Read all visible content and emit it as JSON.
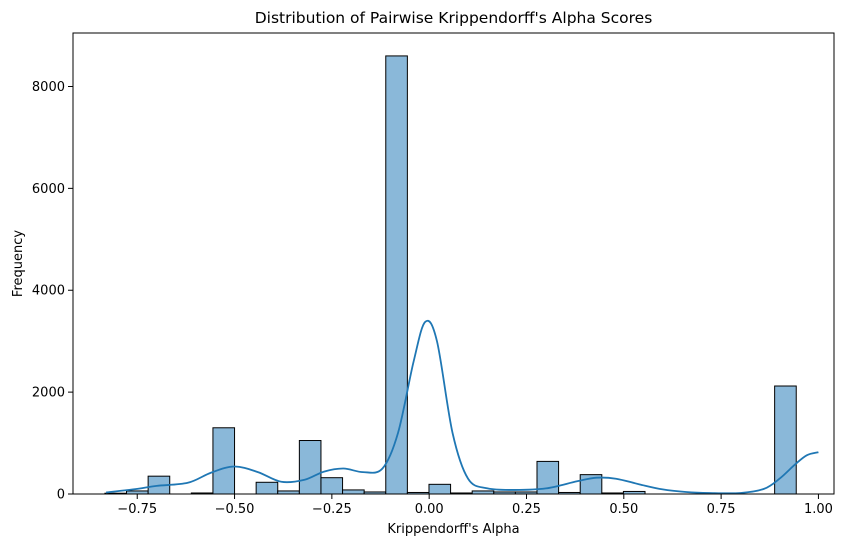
{
  "chart_data": {
    "type": "bar",
    "title": "Distribution of Pairwise Krippendorff's Alpha Scores",
    "xlabel": "Krippendorff's Alpha",
    "ylabel": "Frequency",
    "xlim": [
      -0.915,
      1.04
    ],
    "ylim": [
      0,
      9050
    ],
    "xticks": [
      -0.75,
      -0.5,
      -0.25,
      0.0,
      0.25,
      0.5,
      0.75,
      1.0
    ],
    "xtick_labels": [
      "−0.75",
      "−0.50",
      "−0.25",
      "0.00",
      "0.25",
      "0.50",
      "0.75",
      "1.00"
    ],
    "yticks": [
      0,
      2000,
      4000,
      6000,
      8000
    ],
    "ytick_labels": [
      "0",
      "2000",
      "4000",
      "6000",
      "8000"
    ],
    "bin_start": -0.833,
    "bin_width": 0.0555,
    "bins": [
      {
        "value": 15
      },
      {
        "value": 60
      },
      {
        "value": 350
      },
      {
        "value": 0
      },
      {
        "value": 20
      },
      {
        "value": 1300
      },
      {
        "value": 0
      },
      {
        "value": 230
      },
      {
        "value": 60
      },
      {
        "value": 1050
      },
      {
        "value": 320
      },
      {
        "value": 80
      },
      {
        "value": 40
      },
      {
        "value": 8600
      },
      {
        "value": 30
      },
      {
        "value": 190
      },
      {
        "value": 20
      },
      {
        "value": 60
      },
      {
        "value": 40
      },
      {
        "value": 40
      },
      {
        "value": 640
      },
      {
        "value": 30
      },
      {
        "value": 380
      },
      {
        "value": 20
      },
      {
        "value": 50
      },
      {
        "value": 0
      },
      {
        "value": 0
      },
      {
        "value": 0
      },
      {
        "value": 0
      },
      {
        "value": 0
      },
      {
        "value": 0
      },
      {
        "value": 2120
      }
    ],
    "kde": {
      "x": [
        -0.83,
        -0.75,
        -0.7,
        -0.62,
        -0.56,
        -0.5,
        -0.44,
        -0.38,
        -0.32,
        -0.27,
        -0.22,
        -0.17,
        -0.12,
        -0.08,
        -0.04,
        -0.01,
        0.02,
        0.06,
        0.1,
        0.15,
        0.22,
        0.3,
        0.38,
        0.43,
        0.48,
        0.54,
        0.6,
        0.66,
        0.72,
        0.8,
        0.86,
        0.9,
        0.94,
        0.97,
        1.0
      ],
      "y": [
        30,
        100,
        160,
        220,
        420,
        540,
        430,
        240,
        280,
        440,
        500,
        430,
        500,
        1200,
        2600,
        3380,
        3000,
        1200,
        300,
        110,
        80,
        110,
        250,
        320,
        300,
        190,
        90,
        40,
        20,
        20,
        100,
        300,
        580,
        760,
        820
      ]
    },
    "colors": {
      "bar_fill": "#8ab8d9",
      "bar_edge": "#000000",
      "kde_line": "#1f77b4",
      "axes": "#000000"
    },
    "grid": false,
    "legend": "none"
  }
}
